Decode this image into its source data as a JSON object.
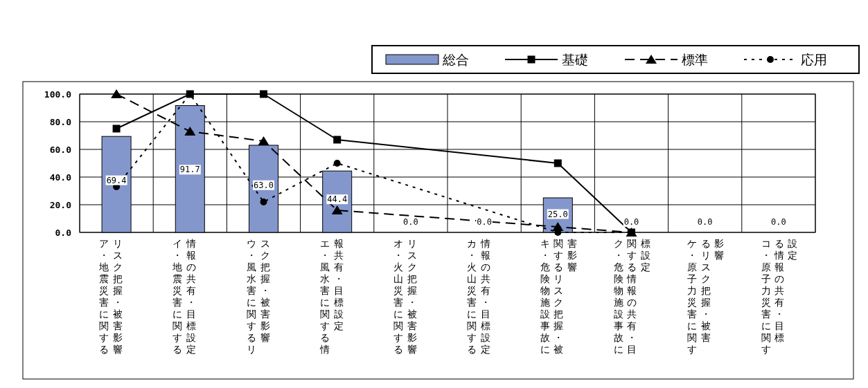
{
  "chart_data": {
    "type": "bar",
    "categories": [
      "ア・地震災害に関するリスク把握・被害影響",
      "イ・地震災害に関する情報の共有・目標設定",
      "ウ・風水害に関するリスク把握・被害影響",
      "エ・風水害に関する情報共有・目標設定",
      "オ・火山災害に関するリスク把握・被害影響",
      "カ・火山災害に関する情報の共有・目標設定",
      "キ・危険物施設事故に関するリスク把握・被害影響",
      "ク・危険物施設事故に関する情報の共有・目標設定",
      "ケ・原子力災害に関するリスク把握・被害影響",
      "コ・原子力災害に関する情報の共有・目標設定"
    ],
    "series": [
      {
        "name": "総合",
        "type": "bar",
        "color": "#8497cc",
        "values": [
          69.4,
          91.7,
          63.0,
          44.4,
          0.0,
          0.0,
          25.0,
          0.0,
          0.0,
          0.0
        ],
        "value_labels": [
          "69.4",
          "91.7",
          "63.0",
          "44.4",
          "0.0",
          "0.0",
          "25.0",
          "0.0",
          "0.0",
          "0.0"
        ]
      },
      {
        "name": "基礎",
        "type": "line",
        "color": "#000000",
        "marker": "square",
        "line_style": "solid",
        "values": [
          75,
          100,
          100,
          67,
          null,
          null,
          50,
          0,
          null,
          null
        ]
      },
      {
        "name": "標準",
        "type": "line",
        "color": "#000000",
        "marker": "triangle",
        "line_style": "dashed",
        "values": [
          100,
          73,
          66,
          16,
          null,
          null,
          4,
          0,
          null,
          null
        ]
      },
      {
        "name": "応用",
        "type": "line",
        "color": "#000000",
        "marker": "circle",
        "line_style": "dotted",
        "values": [
          33,
          100,
          22,
          50,
          null,
          null,
          0,
          0,
          null,
          null
        ]
      }
    ],
    "ylim": [
      0,
      100
    ],
    "yticks": [
      {
        "value": 0,
        "label": "0.0"
      },
      {
        "value": 20,
        "label": "20.0"
      },
      {
        "value": 40,
        "label": "40.0"
      },
      {
        "value": 60,
        "label": "60.0"
      },
      {
        "value": 80,
        "label": "80.0"
      },
      {
        "value": 100,
        "label": "100.0"
      }
    ],
    "grid": true,
    "legend": "top right"
  }
}
